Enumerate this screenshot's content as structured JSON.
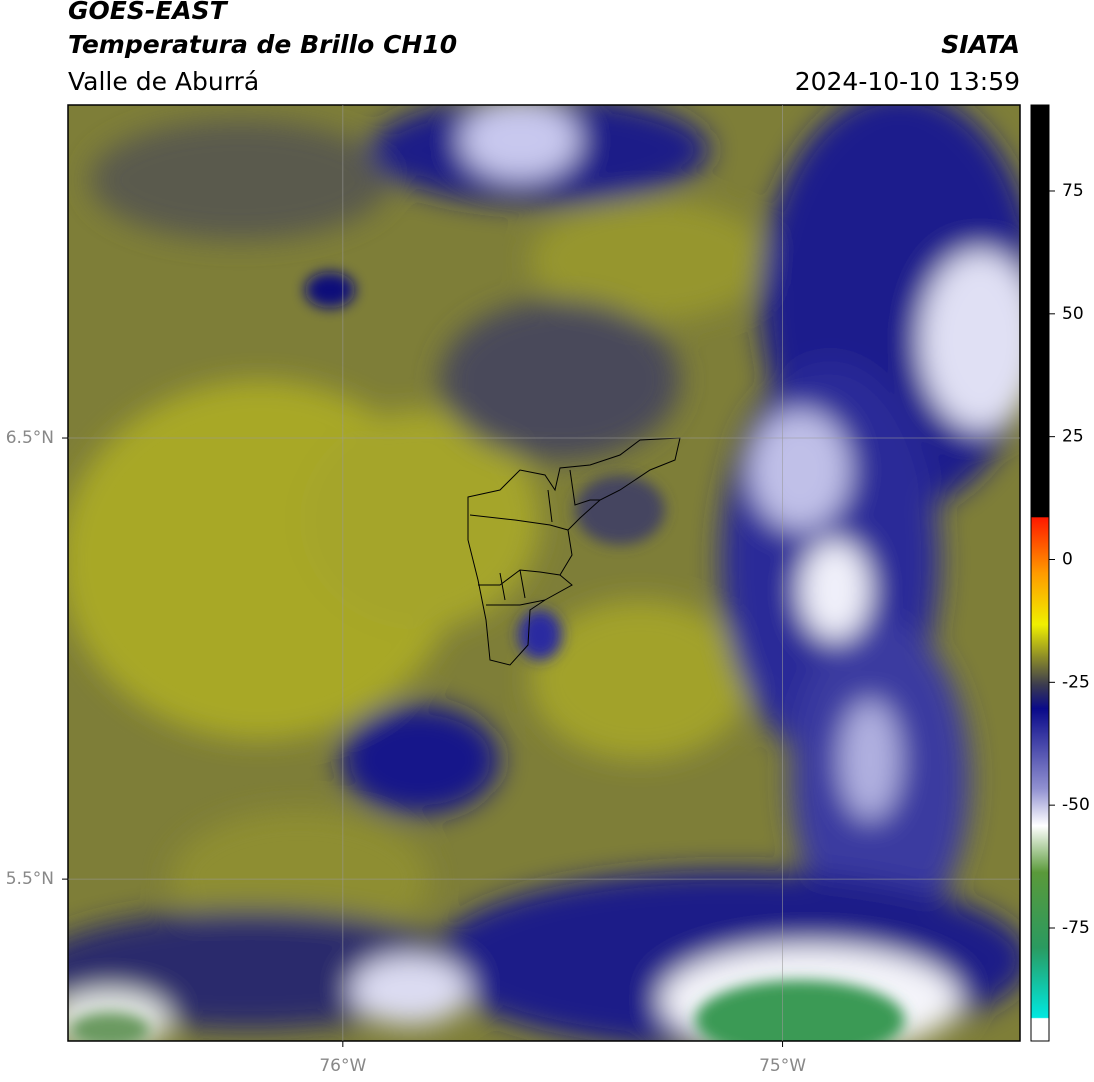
{
  "chart_data": {
    "type": "map",
    "title": "GOES-EAST",
    "subtitle": "Temperatura de Brillo CH10",
    "region": "Valle de Aburrá",
    "source": "SIATA",
    "timestamp": "2024-10-10 13:59",
    "xlim": [
      -76.625,
      -74.46
    ],
    "ylim": [
      5.133,
      7.255
    ],
    "xticks": [
      {
        "value": -76,
        "label": "76°W"
      },
      {
        "value": -75,
        "label": "75°W"
      }
    ],
    "yticks": [
      {
        "value": 6.5,
        "label": "6.5°N"
      },
      {
        "value": 5.5,
        "label": "5.5°N"
      }
    ],
    "grid": true,
    "colorbar": {
      "lim": [
        -98,
        92.5
      ],
      "ticks": [
        75,
        50,
        25,
        0,
        -25,
        -50,
        -75
      ]
    }
  }
}
